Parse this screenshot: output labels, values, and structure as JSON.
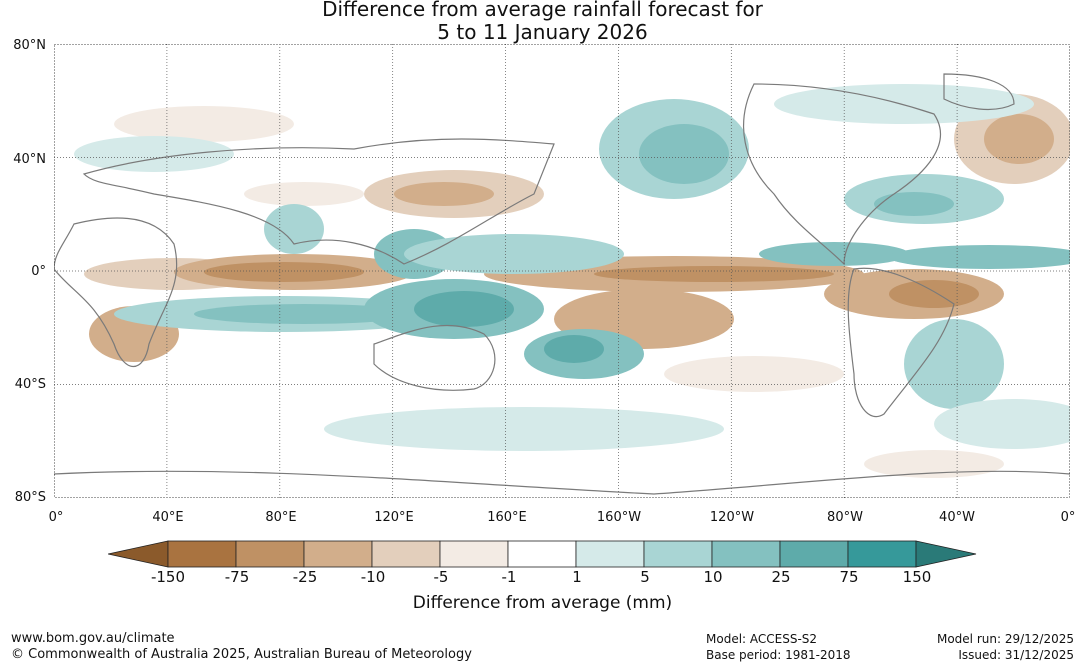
{
  "title_line1": "Difference from average rainfall forecast for",
  "title_line2": "5 to 11 January 2026",
  "lat_labels": [
    "80°N",
    "40°N",
    "0°",
    "40°S",
    "80°S"
  ],
  "lon_labels": [
    "0°",
    "40°E",
    "80°E",
    "120°E",
    "160°E",
    "160°W",
    "120°W",
    "80°W",
    "40°W",
    "0°"
  ],
  "colorbar": {
    "title": "Difference from average (mm)",
    "tick_labels": [
      "-150",
      "-75",
      "-25",
      "-10",
      "-5",
      "-1",
      "1",
      "5",
      "10",
      "25",
      "75",
      "150"
    ],
    "colors": [
      "#8b5a2b",
      "#a97340",
      "#bf9164",
      "#d2ae8b",
      "#e3cfbc",
      "#f3ebe4",
      "#ffffff",
      "#d5eae9",
      "#a9d5d4",
      "#84c1c0",
      "#5eabaa",
      "#36999a",
      "#2a7a78"
    ]
  },
  "footer": {
    "website": "www.bom.gov.au/climate",
    "copyright": "© Commonwealth of Australia 2025, Australian Bureau of Meteorology",
    "model": "Model: ACCESS-S2",
    "base_period": "Base period: 1981-2018",
    "model_run": "Model run: 29/12/2025",
    "issued": "Issued: 31/12/2025"
  }
}
